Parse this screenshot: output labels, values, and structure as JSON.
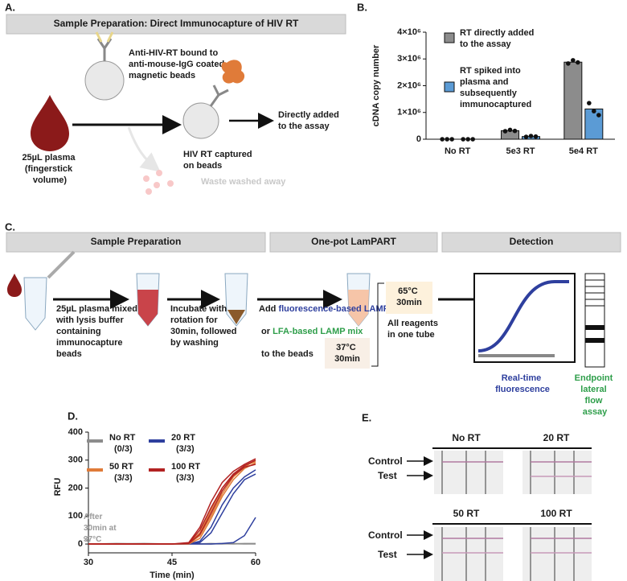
{
  "panel_a": {
    "label": "A.",
    "header": "Sample Preparation: Direct Immunocapture of HIV RT",
    "antibody_text": "Anti-HIV-RT bound to anti-mouse-IgG coated magnetic beads",
    "plasma_text": "25µL plasma (fingerstick volume)",
    "captured_text": "HIV RT captured on beads",
    "added_text": "Directly added to the assay",
    "waste_text": "Waste washed away"
  },
  "chart_data": [
    {
      "panel_label": "B.",
      "type": "bar",
      "y_label": "cDNA copy number",
      "categories": [
        "No RT",
        "5e3 RT",
        "5e4 RT"
      ],
      "ylim": [
        0,
        4000000
      ],
      "yticks": [
        0,
        {
          "value": 1000000,
          "label": "1×10⁶"
        },
        {
          "value": 2000000,
          "label": "2×10⁶"
        },
        {
          "value": 3000000,
          "label": "3×10⁶"
        },
        {
          "value": 4000000,
          "label": "4×10⁶"
        }
      ],
      "series": [
        {
          "name": "RT directly added to the assay",
          "color": "#8c8c8c",
          "values": [
            0,
            320000,
            2880000
          ],
          "points": [
            [
              0,
              0,
              0
            ],
            [
              300000,
              350000,
              310000
            ],
            [
              2830000,
              2950000,
              2870000
            ]
          ]
        },
        {
          "name": "RT spiked into plasma and subsequently immunocaptured",
          "color": "#5b9bd5",
          "values": [
            0,
            100000,
            1130000
          ],
          "points": [
            [
              0,
              0,
              0
            ],
            [
              90000,
              120000,
              100000
            ],
            [
              1350000,
              1050000,
              900000
            ]
          ]
        }
      ]
    },
    {
      "panel_label": "D.",
      "type": "line",
      "x_label": "Time (min)",
      "y_label": "RFU",
      "annotation": "After 30min at 37°C",
      "xlim": [
        30,
        60
      ],
      "ylim": [
        -20,
        400
      ],
      "xticks": [
        30,
        45,
        60
      ],
      "yticks": [
        0,
        100,
        200,
        300,
        400
      ],
      "x": [
        30,
        35,
        40,
        45,
        48,
        50,
        52,
        54,
        56,
        58,
        60
      ],
      "series": [
        {
          "name": "No RT",
          "result": "(0/3)",
          "color": "#8c8c8c",
          "runs": [
            [
              0,
              1,
              0,
              1,
              0,
              1,
              0,
              2,
              1,
              0,
              1
            ],
            [
              1,
              0,
              2,
              0,
              1,
              0,
              1,
              0,
              2,
              1,
              0
            ],
            [
              0,
              2,
              1,
              0,
              2,
              1,
              2,
              1,
              0,
              2,
              2
            ]
          ]
        },
        {
          "name": "20 RT",
          "result": "(3/3)",
          "color": "#2e3f9e",
          "runs": [
            [
              0,
              0,
              0,
              0,
              0,
              0,
              0,
              2,
              5,
              30,
              95
            ],
            [
              0,
              0,
              0,
              0,
              0,
              10,
              60,
              140,
              200,
              240,
              265
            ],
            [
              0,
              0,
              0,
              0,
              0,
              5,
              40,
              110,
              180,
              230,
              250
            ]
          ]
        },
        {
          "name": "50 RT",
          "result": "(3/3)",
          "color": "#e07b39",
          "runs": [
            [
              0,
              0,
              0,
              0,
              2,
              40,
              120,
              200,
              250,
              280,
              295
            ],
            [
              0,
              0,
              0,
              0,
              0,
              20,
              90,
              170,
              230,
              270,
              290
            ],
            [
              0,
              0,
              0,
              0,
              1,
              30,
              100,
              180,
              240,
              275,
              300
            ]
          ]
        },
        {
          "name": "100 RT",
          "result": "(3/3)",
          "color": "#b22222",
          "runs": [
            [
              0,
              0,
              0,
              0,
              5,
              60,
              150,
              220,
              260,
              285,
              305
            ],
            [
              0,
              0,
              0,
              0,
              3,
              50,
              130,
              200,
              250,
              280,
              300
            ],
            [
              0,
              0,
              0,
              0,
              2,
              35,
              110,
              190,
              245,
              275,
              285
            ]
          ]
        }
      ]
    }
  ],
  "panel_c": {
    "label": "C.",
    "headers": [
      "Sample Preparation",
      "One-pot LamPART",
      "Detection"
    ],
    "step1": "25µL plasma mixed with lysis buffer containing immunocapture beads",
    "step2": "Incubate with rotation for 30min, followed by washing",
    "step3": [
      "Add ",
      "fluorescence-based LAMP mix",
      " or ",
      "LFA-based LAMP mix",
      " to the beads"
    ],
    "hot": "65°C 30min",
    "warm": "37°C 30min",
    "one_tube": "All reagents in one tube",
    "realtime": "Real-time fluorescence",
    "endpoint": "Endpoint lateral flow assay"
  },
  "panel_e": {
    "label": "E.",
    "groups": [
      "No RT",
      "20 RT",
      "50 RT",
      "100 RT"
    ],
    "control": "Control",
    "test": "Test"
  }
}
